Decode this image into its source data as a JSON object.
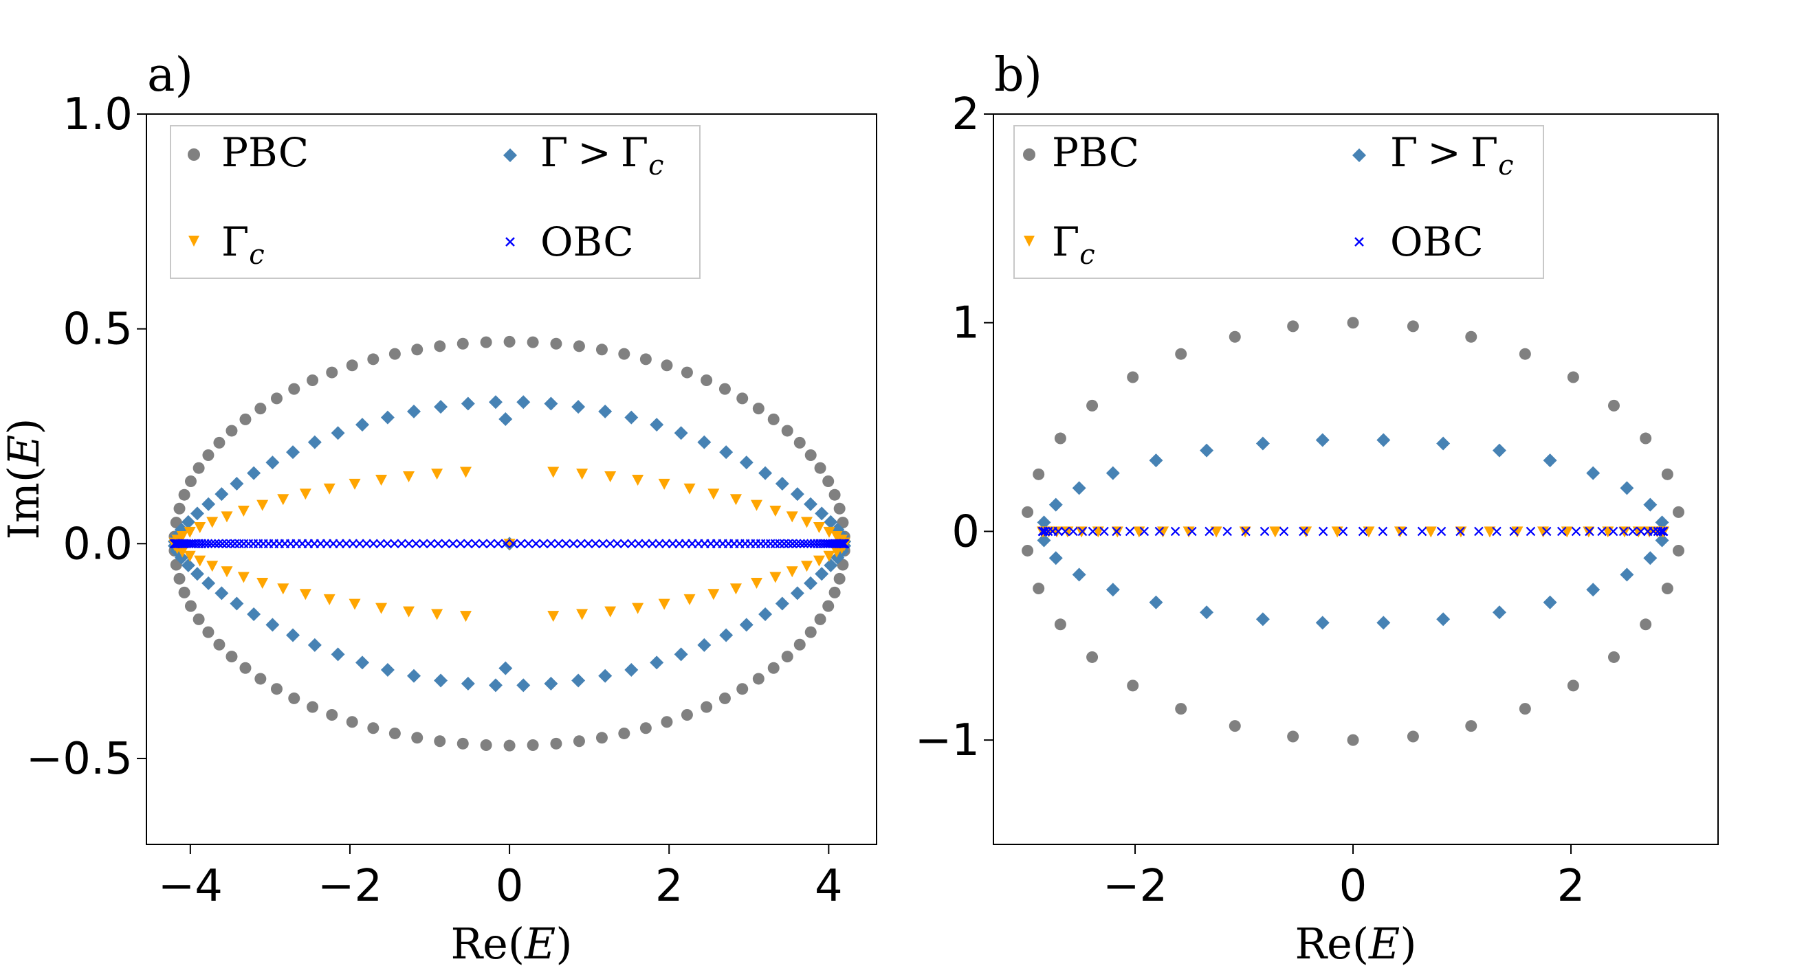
{
  "chart_data": [
    {
      "type": "scatter",
      "panel_label": "a)",
      "xlabel": "Re(E)",
      "ylabel": "Im(E)",
      "xlim": [
        -4.55,
        4.6
      ],
      "ylim": [
        -0.7,
        1.0
      ],
      "xticks": [
        -4,
        -2,
        0,
        2,
        4
      ],
      "xtick_labels": [
        "−4",
        "−2",
        "0",
        "2",
        "4"
      ],
      "yticks": [
        -0.5,
        0.0,
        0.5,
        1.0
      ],
      "ytick_labels": [
        "−0.5",
        "0.0",
        "0.5",
        "1.0"
      ],
      "legend": {
        "position": "upper-left",
        "columns": 2,
        "entries": [
          "PBC",
          "Γ > Γc",
          "Γc",
          "OBC"
        ]
      },
      "series": [
        {
          "name": "PBC",
          "marker": "circle",
          "color": "#808080",
          "shape": "ellipse",
          "rx": 4.2,
          "ry": 0.47,
          "count": 90,
          "gap": 0
        },
        {
          "name": "Γ > Γc",
          "marker": "diamond",
          "color": "#4682b4",
          "shape": "lens",
          "rx": 4.2,
          "peak": 0.33,
          "count": 76,
          "gap": 0.15,
          "notch": 0.29
        },
        {
          "name": "Γc",
          "marker": "triangle-down",
          "color": "#ffa500",
          "shape": "lens",
          "rx": 4.2,
          "peak": 0.17,
          "count": 72,
          "gap": 0.25
        },
        {
          "name": "OBC",
          "marker": "x",
          "color": "#0000ff",
          "shape": "line",
          "rx": 4.2,
          "count": 140
        }
      ]
    },
    {
      "type": "scatter",
      "panel_label": "b)",
      "xlabel": "Re(E)",
      "ylabel": "",
      "xlim": [
        -3.3,
        3.35
      ],
      "ylim": [
        -1.5,
        2.0
      ],
      "xticks": [
        -2,
        0,
        2
      ],
      "xtick_labels": [
        "−2",
        "0",
        "2"
      ],
      "yticks": [
        -1,
        0,
        1,
        2
      ],
      "ytick_labels": [
        "−1",
        "0",
        "1",
        "2"
      ],
      "legend": {
        "position": "upper-left",
        "columns": 2,
        "entries": [
          "PBC",
          "Γ > Γc",
          "Γc",
          "OBC"
        ]
      },
      "series": [
        {
          "name": "PBC",
          "marker": "circle",
          "color": "#808080",
          "shape": "ellipse",
          "rx": 3.0,
          "ry": 1.0,
          "count": 34
        },
        {
          "name": "Γ > Γc",
          "marker": "diamond",
          "color": "#4682b4",
          "shape": "ellipse",
          "rx": 2.85,
          "ry": 0.44,
          "count": 32
        },
        {
          "name": "Γc",
          "marker": "triangle-down",
          "color": "#ffa500",
          "shape": "line",
          "rx": 2.85,
          "count": 32
        },
        {
          "name": "OBC",
          "marker": "x",
          "color": "#0000ff",
          "shape": "line",
          "rx": 2.85,
          "count": 50
        }
      ]
    }
  ],
  "legend_labels": {
    "pbc": "PBC",
    "gamma": "Γ",
    "gt": ">",
    "sub_c": "c",
    "obc": "OBC"
  }
}
